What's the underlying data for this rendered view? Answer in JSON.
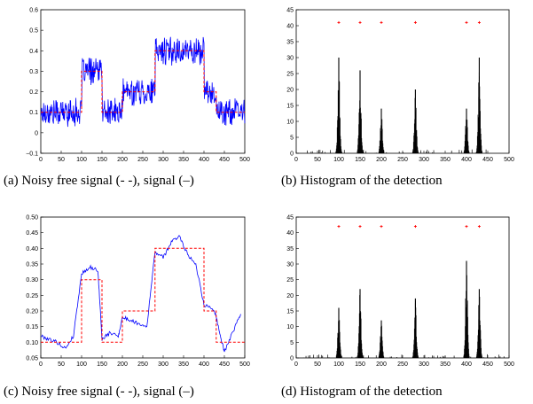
{
  "colors": {
    "signal": "#0000ff",
    "reference": "#ff0000",
    "bars": "#000000",
    "markers": "#ff0000"
  },
  "chart_data": [
    {
      "panel": "a",
      "type": "line",
      "caption": "(a) Noisy free signal (- -), signal (–)",
      "xlim": [
        0,
        500
      ],
      "ylim": [
        -0.1,
        0.6
      ],
      "xticks": [
        0,
        50,
        100,
        150,
        200,
        250,
        300,
        350,
        400,
        450,
        500
      ],
      "yticks": [
        -0.1,
        0,
        0.1,
        0.2,
        0.3,
        0.4,
        0.5,
        0.6
      ],
      "ytick_labels": [
        "−0.1",
        "0",
        "0.1",
        "0.2",
        "0.3",
        "0.4",
        "0.5",
        "0.6"
      ],
      "series": [
        {
          "role": "reference",
          "style": "dashed",
          "color": "#ff0000",
          "segments": [
            {
              "x": [
                0,
                100
              ],
              "y": 0.1
            },
            {
              "x": [
                100,
                150
              ],
              "y": 0.3
            },
            {
              "x": [
                150,
                200
              ],
              "y": 0.1
            },
            {
              "x": [
                200,
                280
              ],
              "y": 0.2
            },
            {
              "x": [
                280,
                400
              ],
              "y": 0.4
            },
            {
              "x": [
                400,
                430
              ],
              "y": 0.2
            },
            {
              "x": [
                430,
                500
              ],
              "y": 0.1
            }
          ]
        },
        {
          "role": "signal",
          "style": "solid",
          "color": "#0000ff",
          "noise_amplitude": 0.06
        }
      ]
    },
    {
      "panel": "b",
      "type": "bar",
      "caption": "(b) Histogram of the detection",
      "xlim": [
        0,
        500
      ],
      "ylim": [
        0,
        45
      ],
      "xticks": [
        0,
        50,
        100,
        150,
        200,
        250,
        300,
        350,
        400,
        450,
        500
      ],
      "yticks": [
        0,
        5,
        10,
        15,
        20,
        25,
        30,
        35,
        40,
        45
      ],
      "peaks": [
        {
          "x": 100,
          "height": 30
        },
        {
          "x": 150,
          "height": 26
        },
        {
          "x": 200,
          "height": 14
        },
        {
          "x": 280,
          "height": 20
        },
        {
          "x": 400,
          "height": 14
        },
        {
          "x": 430,
          "height": 30
        }
      ],
      "markers": {
        "y": 41,
        "x": [
          100,
          150,
          200,
          280,
          400,
          430
        ]
      }
    },
    {
      "panel": "c",
      "type": "line",
      "caption": "(c) Noisy free signal (- -), signal (–)",
      "xlim": [
        0,
        500
      ],
      "ylim": [
        0.05,
        0.5
      ],
      "xticks": [
        0,
        50,
        100,
        150,
        200,
        250,
        300,
        350,
        400,
        450,
        500
      ],
      "yticks": [
        0.05,
        0.1,
        0.15,
        0.2,
        0.25,
        0.3,
        0.35,
        0.4,
        0.45,
        0.5
      ],
      "ytick_labels": [
        "0.05",
        "0.10",
        "0.15",
        "0.20",
        "0.25",
        "0.30",
        "0.35",
        "0.40",
        "0.45",
        "0.50"
      ],
      "series": [
        {
          "role": "reference",
          "style": "dashed",
          "color": "#ff0000",
          "segments": [
            {
              "x": [
                0,
                100
              ],
              "y": 0.1
            },
            {
              "x": [
                100,
                150
              ],
              "y": 0.3
            },
            {
              "x": [
                150,
                200
              ],
              "y": 0.1
            },
            {
              "x": [
                200,
                280
              ],
              "y": 0.2
            },
            {
              "x": [
                280,
                400
              ],
              "y": 0.4
            },
            {
              "x": [
                400,
                430
              ],
              "y": 0.2
            },
            {
              "x": [
                430,
                500
              ],
              "y": 0.1
            }
          ]
        },
        {
          "role": "signal",
          "style": "solid",
          "color": "#0000ff",
          "x": [
            0,
            20,
            40,
            60,
            80,
            100,
            120,
            140,
            150,
            170,
            190,
            200,
            220,
            240,
            260,
            280,
            300,
            320,
            340,
            360,
            380,
            400,
            420,
            430,
            440,
            450,
            470,
            490
          ],
          "y": [
            0.12,
            0.11,
            0.1,
            0.08,
            0.12,
            0.32,
            0.34,
            0.33,
            0.11,
            0.13,
            0.12,
            0.18,
            0.17,
            0.16,
            0.15,
            0.39,
            0.37,
            0.42,
            0.44,
            0.38,
            0.35,
            0.22,
            0.21,
            0.18,
            0.12,
            0.07,
            0.13,
            0.19
          ]
        }
      ]
    },
    {
      "panel": "d",
      "type": "bar",
      "caption": "(d) Histogram of the detection",
      "xlim": [
        0,
        500
      ],
      "ylim": [
        0,
        45
      ],
      "xticks": [
        0,
        50,
        100,
        150,
        200,
        250,
        300,
        350,
        400,
        450,
        500
      ],
      "yticks": [
        0,
        5,
        10,
        15,
        20,
        25,
        30,
        35,
        40,
        45
      ],
      "peaks": [
        {
          "x": 100,
          "height": 16
        },
        {
          "x": 150,
          "height": 22
        },
        {
          "x": 200,
          "height": 12
        },
        {
          "x": 280,
          "height": 19
        },
        {
          "x": 400,
          "height": 31
        },
        {
          "x": 430,
          "height": 22
        }
      ],
      "markers": {
        "y": 42,
        "x": [
          100,
          150,
          200,
          280,
          400,
          430
        ]
      }
    }
  ]
}
